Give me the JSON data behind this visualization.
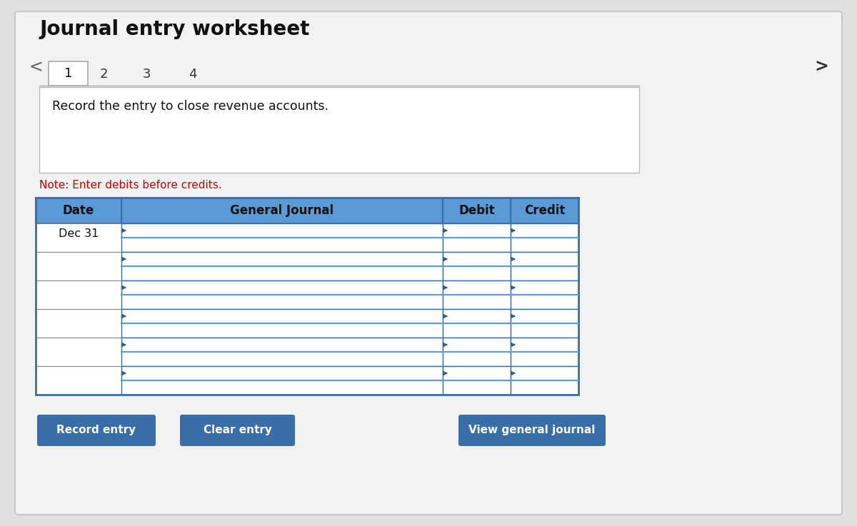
{
  "title": "Journal entry worksheet",
  "bg_color": "#e0e0e0",
  "panel_bg": "#f0f0f0",
  "white": "#ffffff",
  "tabs": [
    "1",
    "2",
    "3",
    "4"
  ],
  "note_text": "Note: Enter debits before credits.",
  "note_color": "#cc0000",
  "instruction_text": "Record the entry to close revenue accounts.",
  "table_header_bg": "#5b9bd5",
  "table_header_text": "#111111",
  "table_border_dark": "#3a6ea8",
  "table_border_blue": "#5b9bd5",
  "col_headers": [
    "Date",
    "General Journal",
    "Debit",
    "Credit"
  ],
  "first_date": "Dec 31",
  "num_rows": 6,
  "button_bg": "#3a6ea8",
  "button_text": "#ffffff",
  "buttons": [
    "Record entry",
    "Clear entry",
    "View general journal"
  ],
  "arrow_color": "#2e5f99",
  "nav_left": "<",
  "nav_right": ">"
}
